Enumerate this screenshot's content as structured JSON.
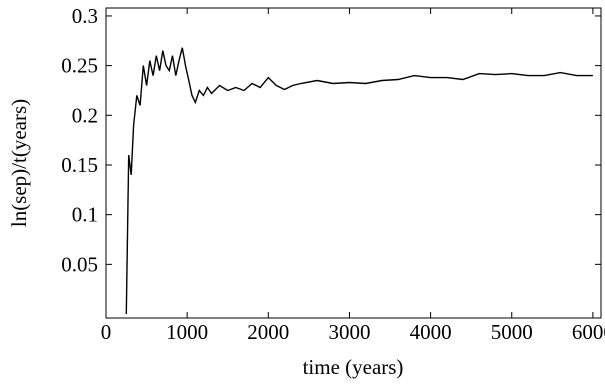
{
  "chart_data": {
    "type": "line",
    "x_label": "time (years)",
    "y_label": "ln(sep)/t(years)",
    "x": [
      250,
      280,
      310,
      340,
      380,
      420,
      460,
      500,
      540,
      580,
      620,
      660,
      700,
      740,
      780,
      820,
      860,
      900,
      940,
      980,
      1020,
      1060,
      1100,
      1150,
      1200,
      1250,
      1300,
      1400,
      1500,
      1600,
      1700,
      1800,
      1900,
      2000,
      2100,
      2200,
      2300,
      2400,
      2600,
      2800,
      3000,
      3200,
      3400,
      3600,
      3800,
      4000,
      4200,
      4400,
      4600,
      4800,
      5000,
      5200,
      5400,
      5600,
      5800,
      6000
    ],
    "series": [
      {
        "name": "ln(sep)/t",
        "color": "#000000",
        "values": [
          0.0,
          0.16,
          0.14,
          0.19,
          0.22,
          0.21,
          0.25,
          0.23,
          0.255,
          0.24,
          0.26,
          0.245,
          0.265,
          0.25,
          0.245,
          0.26,
          0.24,
          0.255,
          0.268,
          0.25,
          0.235,
          0.22,
          0.213,
          0.225,
          0.22,
          0.228,
          0.222,
          0.23,
          0.225,
          0.228,
          0.225,
          0.232,
          0.228,
          0.238,
          0.23,
          0.226,
          0.23,
          0.232,
          0.235,
          0.232,
          0.233,
          0.232,
          0.235,
          0.236,
          0.24,
          0.238,
          0.238,
          0.236,
          0.242,
          0.241,
          0.242,
          0.24,
          0.24,
          0.243,
          0.24,
          0.24
        ]
      }
    ],
    "xlim": [
      0,
      6100
    ],
    "xticks": [
      0,
      1000,
      2000,
      3000,
      4000,
      5000,
      6000
    ],
    "ylim": [
      -0.004,
      0.308
    ],
    "yticks": [
      0.05,
      0.1,
      0.15,
      0.2,
      0.25,
      0.3
    ]
  }
}
